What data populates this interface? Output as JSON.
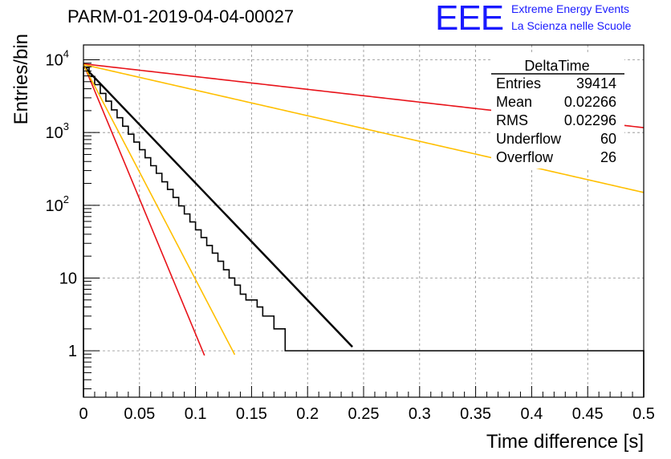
{
  "run_title": "PARM-01-2019-04-04-00027",
  "logo": {
    "text": "EEE",
    "line1": "Extreme Energy Events",
    "line2": "La Scienza nelle Scuole",
    "color": "#1a1aff"
  },
  "stats": {
    "title": "DeltaTime",
    "rows": [
      {
        "label": "Entries",
        "value": "39414"
      },
      {
        "label": "Mean",
        "value": "0.02266"
      },
      {
        "label": "RMS",
        "value": "0.02296"
      },
      {
        "label": "Underflow",
        "value": "60"
      },
      {
        "label": "Overflow",
        "value": "26"
      }
    ]
  },
  "chart_data": {
    "type": "line",
    "xlabel": "Time difference [s]",
    "ylabel": "Entries/bin",
    "xlim": [
      0,
      0.5
    ],
    "ylim": [
      0.23,
      16000
    ],
    "yscale": "log",
    "grid": true,
    "x_ticks": [
      "0",
      "0.05",
      "0.1",
      "0.15",
      "0.2",
      "0.25",
      "0.3",
      "0.35",
      "0.4",
      "0.45",
      "0.5"
    ],
    "y_ticks": [
      {
        "value": 1,
        "label": "1"
      },
      {
        "value": 10,
        "label": "10"
      },
      {
        "value": 100,
        "label": "10",
        "exp": "2"
      },
      {
        "value": 1000,
        "label": "10",
        "exp": "3"
      },
      {
        "value": 10000,
        "label": "10",
        "exp": "4"
      }
    ],
    "histogram": {
      "bin_width": 0.005,
      "color": "#000000",
      "counts": [
        7800,
        5900,
        4550,
        3450,
        2700,
        2050,
        1600,
        1220,
        950,
        740,
        580,
        450,
        350,
        275,
        210,
        165,
        128,
        98,
        76,
        59,
        46,
        36,
        28,
        22,
        17,
        13,
        10,
        8,
        6,
        5,
        5,
        4,
        3,
        3,
        2,
        2,
        1,
        1,
        1,
        1,
        1,
        1,
        1,
        1,
        1,
        1,
        1,
        1,
        1,
        1,
        1,
        1,
        1,
        1,
        1,
        1,
        1,
        1,
        1,
        1,
        1,
        1,
        1,
        1,
        1,
        1,
        1,
        1,
        1,
        1,
        1,
        1,
        1,
        1,
        1,
        1,
        1,
        1,
        1,
        1,
        1,
        1,
        1,
        1,
        1,
        1,
        1,
        1,
        1,
        1,
        1,
        1,
        1,
        1,
        1,
        1,
        1,
        1,
        1,
        1
      ]
    },
    "fits": [
      {
        "color": "#000000",
        "n0": 8200,
        "tau": 0.027,
        "x_end": 0.24,
        "width": 2.5
      },
      {
        "color": "#e8131a",
        "n0": 8800,
        "tau": 0.0117,
        "x_end": 0.108,
        "width": 1.6
      },
      {
        "color": "#ffbf00",
        "n0": 8600,
        "tau": 0.0147,
        "x_end": 0.135,
        "width": 1.6
      },
      {
        "color": "#e8131a",
        "n0": 8800,
        "tau": 0.2475,
        "x_end": 0.5,
        "width": 1.6
      },
      {
        "color": "#ffbf00",
        "n0": 8600,
        "tau": 0.1235,
        "x_end": 0.5,
        "width": 1.6
      }
    ]
  }
}
